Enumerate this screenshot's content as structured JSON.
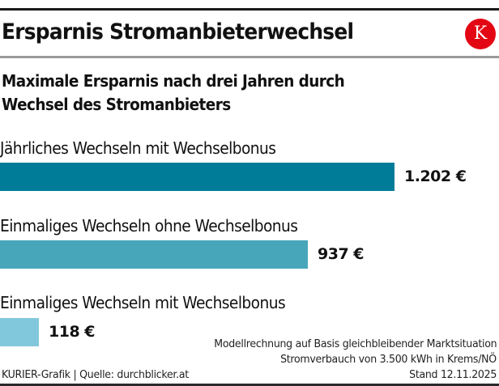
{
  "header": {
    "title": "Ersparnis Stromanbieterwechsel",
    "logo_letter": "K",
    "logo_color": "#e30613"
  },
  "subtitle_line1": "Maximale Ersparnis nach drei Jahren durch",
  "subtitle_line2": "Wechsel des Stromanbieters",
  "bars": [
    {
      "label": "Jährliches Wechseln mit Wechselbonus",
      "value_label": "1.202 €",
      "value": 1202,
      "color": "#007c99"
    },
    {
      "label": "Einmaliges Wechseln ohne Wechselbonus",
      "value_label": "937 €",
      "value": 937,
      "color": "#48a6bb"
    },
    {
      "label": "Einmaliges Wechseln mit Wechselbonus",
      "value_label": "118 €",
      "value": 118,
      "color": "#82c8dc"
    }
  ],
  "notes": {
    "line1": "Modellrechnung auf Basis gleichbleibender Marktsituation",
    "line2": "Stromverbauch von 3.500 kWh in Krems/NÖ",
    "line3": "Stand 12.11.2025"
  },
  "source": "KURIER-Grafik | Quelle: durchblicker.at",
  "chart_data": {
    "type": "bar",
    "orientation": "horizontal",
    "title": "Ersparnis Stromanbieterwechsel",
    "subtitle": "Maximale Ersparnis nach drei Jahren durch Wechsel des Stromanbieters",
    "categories": [
      "Jährliches Wechseln mit Wechselbonus",
      "Einmaliges Wechseln ohne Wechselbonus",
      "Einmaliges Wechseln mit Wechselbonus"
    ],
    "values": [
      1202,
      937,
      118
    ],
    "value_labels": [
      "1.202 €",
      "937 €",
      "118 €"
    ],
    "unit": "€",
    "colors": [
      "#007c99",
      "#48a6bb",
      "#82c8dc"
    ],
    "xlabel": "",
    "ylabel": "",
    "grid": false,
    "legend": null,
    "annotations": [
      "Modellrechnung auf Basis gleichbleibender Marktsituation",
      "Stromverbauch von 3.500 kWh in Krems/NÖ",
      "Stand 12.11.2025"
    ],
    "source": "KURIER-Grafik | Quelle: durchblicker.at"
  }
}
